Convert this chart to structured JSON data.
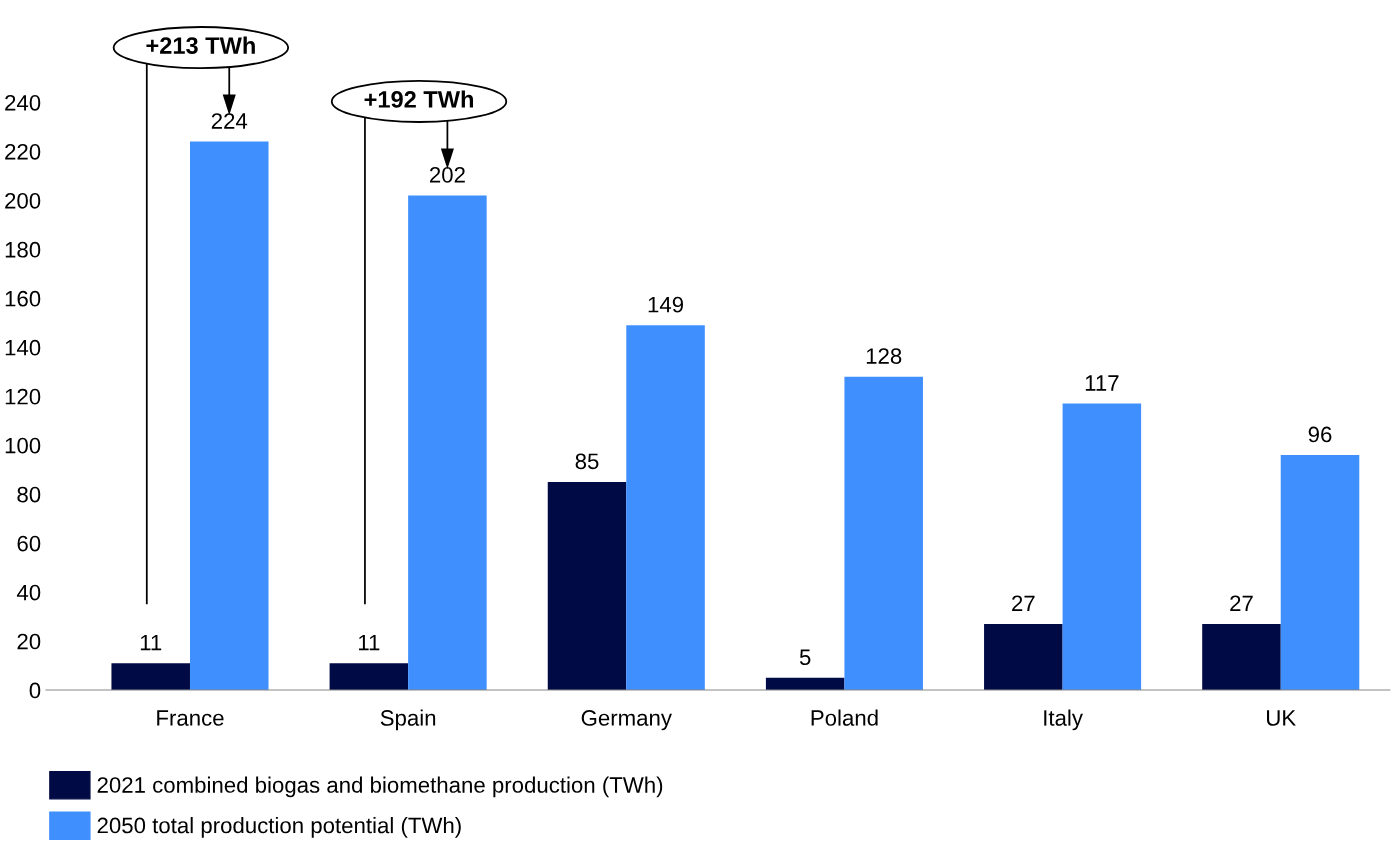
{
  "chart_data": {
    "type": "bar",
    "categories": [
      "France",
      "Spain",
      "Germany",
      "Poland",
      "Italy",
      "UK"
    ],
    "series": [
      {
        "name": "2021 combined biogas and biomethane production (TWh)",
        "color": "#000a45",
        "values": [
          11,
          11,
          85,
          5,
          27,
          27
        ]
      },
      {
        "name": "2050 total production potential (TWh)",
        "color": "#3f8fff",
        "values": [
          224,
          202,
          149,
          128,
          117,
          96
        ]
      }
    ],
    "ylim": [
      0,
      240
    ],
    "yticks": [
      0,
      20,
      40,
      60,
      80,
      100,
      120,
      140,
      160,
      180,
      200,
      220,
      240
    ],
    "data_labels": true,
    "grid": false,
    "legend": "bottom left",
    "annotations": [
      "+213 TWh",
      "+192 TWh"
    ]
  }
}
